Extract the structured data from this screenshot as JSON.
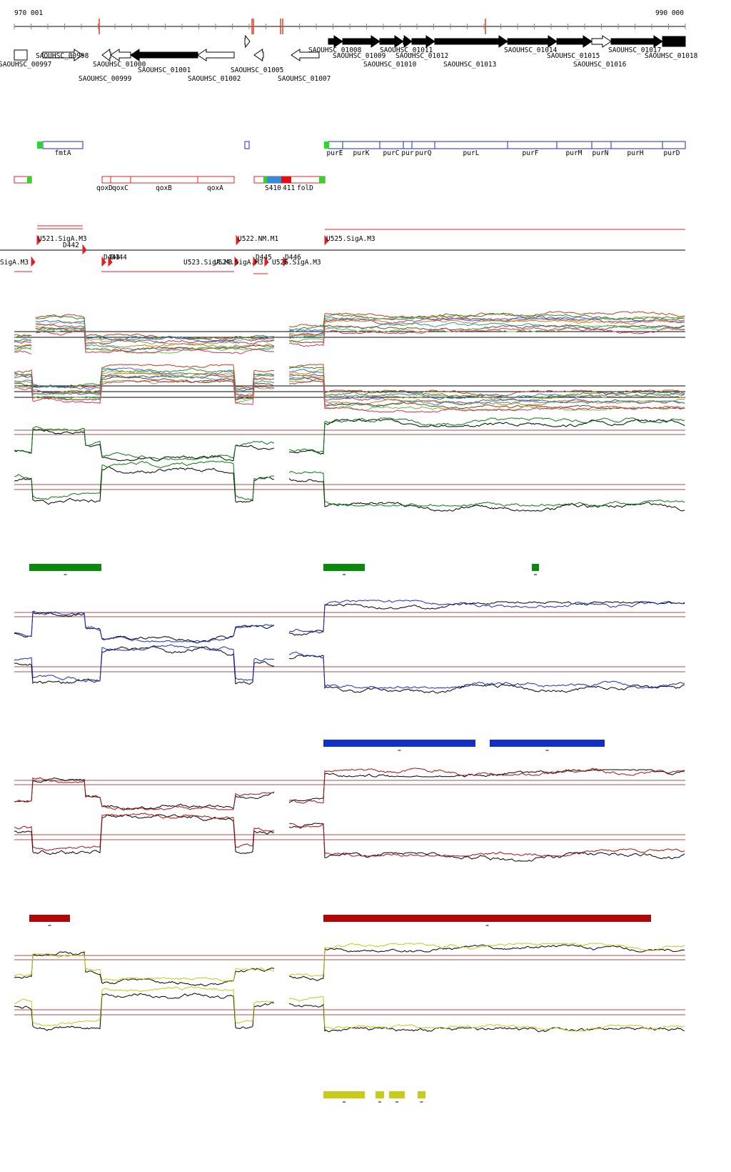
{
  "axis": {
    "start": "970 001",
    "end": "990 000"
  },
  "genes": [
    "SAOUHSC_00997",
    "SAOUHSC_00998",
    "SAOUHSC_00999",
    "SAOUHSC_01000",
    "SAOUHSC_01001",
    "SAOUHSC_01002",
    "SAOUHSC_01005",
    "SAOUHSC_01007",
    "SAOUHSC_01008",
    "SAOUHSC_01009",
    "SAOUHSC_01010",
    "SAOUHSC_01011",
    "SAOUHSC_01012",
    "SAOUHSC_01013",
    "SAOUHSC_01014",
    "SAOUHSC_01015",
    "SAOUHSC_01016",
    "SAOUHSC_01017",
    "SAOUHSC_01018"
  ],
  "operons_blue": [
    "fmtA",
    "purE",
    "purK",
    "purC",
    "pur",
    "purQ",
    "purL",
    "purF",
    "purM",
    "purN",
    "purH",
    "purD"
  ],
  "operons_red": [
    "qoxD",
    "qoxC",
    "qoxB",
    "qoxA",
    "S410",
    "411",
    "folD"
  ],
  "promoters": [
    "U521.SigA.M3",
    "D442",
    "SigA.M3",
    "D443",
    "D444",
    "U522.NM.M1",
    "U523.SigA.M3",
    "U524.SigA.M3",
    "D445",
    "U526.SigA.M3",
    "D446",
    "U525.SigA.M3"
  ]
}
